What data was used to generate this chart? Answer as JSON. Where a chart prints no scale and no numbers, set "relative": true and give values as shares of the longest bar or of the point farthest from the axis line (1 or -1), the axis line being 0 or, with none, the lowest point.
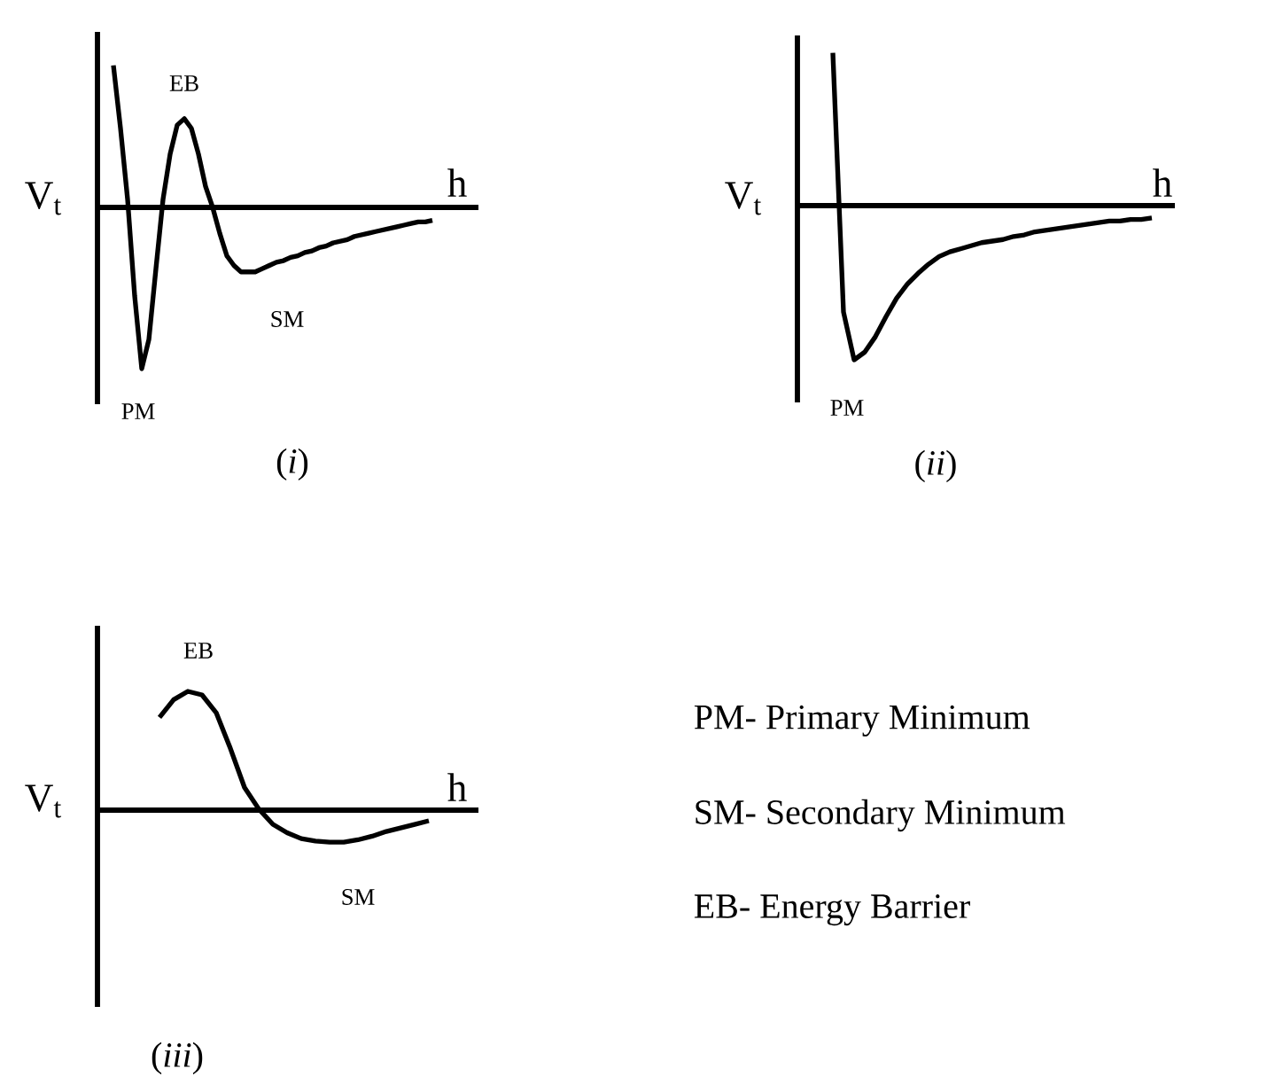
{
  "chart_data": [
    {
      "type": "line",
      "relative": true,
      "title": "(*i*)",
      "xlabel": "h",
      "ylabel": "V$_{t}$",
      "annotations": [
        "EB",
        "PM",
        "SM"
      ],
      "categories": [
        null,
        null,
        null,
        null,
        null,
        null,
        null,
        null,
        null,
        null,
        null,
        null,
        null,
        null,
        null,
        null,
        null,
        null,
        null,
        null,
        null,
        null,
        null,
        null,
        null,
        null,
        null,
        null,
        null,
        null,
        null,
        null,
        null,
        null,
        null,
        null,
        null,
        null,
        null,
        null,
        null,
        null,
        null,
        null,
        null,
        null
      ],
      "series": [
        {
          "color": "#000000",
          "values": [
            0.88,
            0.49,
            0.05,
            -0.55,
            -1,
            -0.82,
            -0.38,
            0.05,
            0.33,
            0.51,
            0.55,
            0.49,
            0.33,
            0.13,
            0,
            -0.16,
            -0.3,
            -0.36,
            -0.4,
            -0.4,
            -0.4,
            -0.38,
            -0.36,
            -0.34,
            -0.33,
            -0.31,
            -0.3,
            -0.28,
            -0.27,
            -0.25,
            -0.24,
            -0.22,
            -0.21,
            -0.2,
            -0.18,
            -0.17,
            -0.16,
            -0.15,
            -0.14,
            -0.13,
            -0.12,
            -0.11,
            -0.1,
            -0.09,
            -0.09,
            -0.08
          ]
        }
      ]
    },
    {
      "type": "line",
      "relative": true,
      "title": "(*ii*)",
      "xlabel": "h",
      "ylabel": "V$_{t}$",
      "annotations": [
        "PM"
      ],
      "categories": [
        null,
        null,
        null,
        null,
        null,
        null,
        null,
        null,
        null,
        null,
        null,
        null,
        null,
        null,
        null,
        null,
        null,
        null,
        null,
        null,
        null,
        null,
        null,
        null,
        null,
        null,
        null,
        null,
        null,
        null,
        null
      ],
      "series": [
        {
          "color": "#000000",
          "values": [
            0.99,
            -0.69,
            -1,
            -0.95,
            -0.85,
            -0.72,
            -0.6,
            -0.51,
            -0.44,
            -0.38,
            -0.33,
            -0.3,
            -0.28,
            -0.26,
            -0.24,
            -0.23,
            -0.22,
            -0.2,
            -0.19,
            -0.17,
            -0.16,
            -0.15,
            -0.14,
            -0.13,
            -0.12,
            -0.11,
            -0.1,
            -0.1,
            -0.09,
            -0.09,
            -0.08
          ]
        }
      ]
    },
    {
      "type": "line",
      "relative": true,
      "title": "(*iii*)",
      "xlabel": "h",
      "ylabel": "V$_{t}$",
      "annotations": [
        "EB",
        "SM"
      ],
      "categories": [
        null,
        null,
        null,
        null,
        null,
        null,
        null,
        null,
        null,
        null,
        null,
        null,
        null,
        null,
        null,
        null,
        null,
        null,
        null,
        null
      ],
      "series": [
        {
          "color": "#000000",
          "values": [
            0.78,
            0.93,
            1,
            0.97,
            0.82,
            0.52,
            0.19,
            0.01,
            -0.12,
            -0.19,
            -0.24,
            -0.26,
            -0.27,
            -0.27,
            -0.25,
            -0.22,
            -0.18,
            -0.15,
            -0.12,
            -0.09
          ]
        }
      ]
    },
    {
      "type": "other",
      "annotations": [
        "PM- Primary Minimum",
        "SM- Secondary Minimum",
        "EB- Energy Barrier"
      ]
    }
  ]
}
